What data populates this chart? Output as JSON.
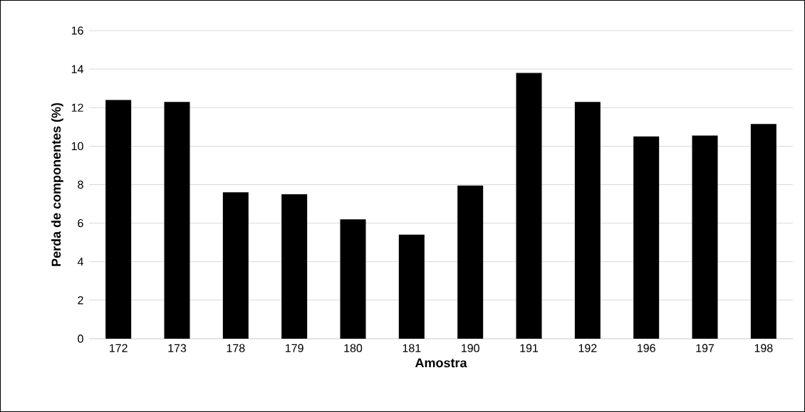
{
  "chart_data": {
    "type": "bar",
    "xlabel": "Amostra",
    "ylabel": "Perda de componentes (%)",
    "categories": [
      "172",
      "173",
      "178",
      "179",
      "180",
      "181",
      "190",
      "191",
      "192",
      "196",
      "197",
      "198"
    ],
    "values": [
      12.4,
      12.3,
      7.6,
      7.5,
      6.2,
      5.4,
      7.95,
      13.8,
      12.3,
      10.5,
      10.55,
      11.15
    ],
    "color": "#000000",
    "ylim": [
      0,
      16
    ],
    "yticks": [
      0,
      2,
      4,
      6,
      8,
      10,
      12,
      14,
      16
    ],
    "grid": "y"
  }
}
